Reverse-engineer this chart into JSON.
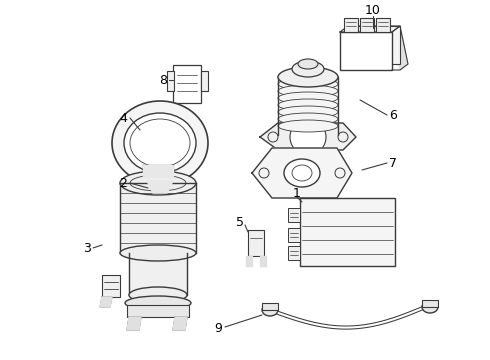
{
  "background_color": "#ffffff",
  "line_color": "#3a3a3a",
  "text_color": "#000000",
  "fig_width": 4.9,
  "fig_height": 3.6,
  "dpi": 100,
  "label_fontsize": 9
}
